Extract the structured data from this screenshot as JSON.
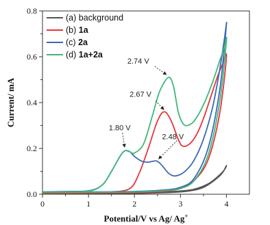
{
  "chart_data": {
    "type": "line",
    "xlabel": "Potential/V vs Ag/ Ag",
    "xlabel_sup": "+",
    "ylabel": "Current/ mA",
    "xlim": [
      0,
      4.5
    ],
    "ylim": [
      0,
      0.8
    ],
    "x_ticks": [
      "0",
      "1",
      "2",
      "3",
      "4"
    ],
    "y_ticks": [
      "0.0",
      "0.2",
      "0.4",
      "0.6",
      "0.8"
    ],
    "grid": false,
    "legend_position": "top-left",
    "series": [
      {
        "name_prefix": "(a) ",
        "name_main": "background",
        "name_bold": false,
        "color": "#555555",
        "x": [
          0,
          0.5,
          1.0,
          1.5,
          2.0,
          2.5,
          3.0,
          3.3,
          3.6,
          3.8,
          3.95,
          4.0,
          3.9,
          3.7,
          3.5,
          3.3,
          3.0,
          2.5,
          2.0,
          1.0,
          0.0
        ],
        "y": [
          0.002,
          0.003,
          0.004,
          0.005,
          0.006,
          0.008,
          0.014,
          0.022,
          0.045,
          0.075,
          0.105,
          0.125,
          0.09,
          0.055,
          0.03,
          0.018,
          0.01,
          0.006,
          0.004,
          0.003,
          0.002
        ]
      },
      {
        "name_prefix": "(b) ",
        "name_main": "1a",
        "name_bold": true,
        "color": "#e8333a",
        "x": [
          0,
          0.5,
          1.0,
          1.5,
          1.9,
          2.1,
          2.3,
          2.5,
          2.65,
          2.8,
          2.95,
          3.05,
          3.2,
          3.35,
          3.5,
          3.65,
          3.8,
          3.92,
          4.0,
          3.85,
          3.6,
          3.3,
          3.0,
          2.6,
          2.0,
          1.0,
          0.0
        ],
        "y": [
          0.005,
          0.006,
          0.007,
          0.01,
          0.025,
          0.09,
          0.2,
          0.32,
          0.36,
          0.32,
          0.24,
          0.21,
          0.22,
          0.26,
          0.33,
          0.42,
          0.51,
          0.57,
          0.6,
          0.35,
          0.15,
          0.06,
          0.025,
          0.012,
          0.008,
          0.006,
          0.005
        ]
      },
      {
        "name_prefix": "(c) ",
        "name_main": "2a",
        "name_bold": true,
        "color": "#3a67b5",
        "x": [
          0,
          0.5,
          1.0,
          1.3,
          1.5,
          1.7,
          1.8,
          1.9,
          2.0,
          2.15,
          2.3,
          2.48,
          2.6,
          2.75,
          2.9,
          3.1,
          3.3,
          3.5,
          3.7,
          3.85,
          3.95,
          4.0,
          3.85,
          3.6,
          3.3,
          3.0,
          2.6,
          2.0,
          1.0,
          0.0
        ],
        "y": [
          0.01,
          0.012,
          0.015,
          0.04,
          0.1,
          0.17,
          0.19,
          0.185,
          0.165,
          0.145,
          0.14,
          0.145,
          0.125,
          0.09,
          0.08,
          0.1,
          0.15,
          0.24,
          0.38,
          0.54,
          0.67,
          0.74,
          0.45,
          0.2,
          0.07,
          0.03,
          0.018,
          0.012,
          0.01,
          0.01
        ]
      },
      {
        "name_prefix": "(d) ",
        "name_main": "1a+2a",
        "name_bold": true,
        "color": "#3cb878",
        "x": [
          0,
          0.5,
          1.0,
          1.3,
          1.5,
          1.7,
          1.8,
          1.9,
          2.0,
          2.2,
          2.4,
          2.55,
          2.74,
          2.85,
          2.95,
          3.05,
          3.15,
          3.3,
          3.5,
          3.7,
          3.85,
          3.95,
          4.0,
          3.85,
          3.6,
          3.3,
          3.0,
          2.6,
          2.0,
          1.0,
          0.0
        ],
        "y": [
          0.008,
          0.01,
          0.013,
          0.04,
          0.1,
          0.17,
          0.19,
          0.185,
          0.18,
          0.22,
          0.35,
          0.45,
          0.51,
          0.47,
          0.36,
          0.31,
          0.3,
          0.32,
          0.39,
          0.49,
          0.58,
          0.64,
          0.67,
          0.4,
          0.17,
          0.06,
          0.025,
          0.015,
          0.01,
          0.009,
          0.008
        ]
      }
    ],
    "annotations": [
      {
        "text": "2.74 V",
        "x": 2.74,
        "y": 0.51
      },
      {
        "text": "2.67 V",
        "x": 2.67,
        "y": 0.36
      },
      {
        "text": "1.80 V",
        "x": 1.8,
        "y": 0.19
      },
      {
        "text": "2.48 V",
        "x": 2.48,
        "y": 0.145
      }
    ]
  }
}
